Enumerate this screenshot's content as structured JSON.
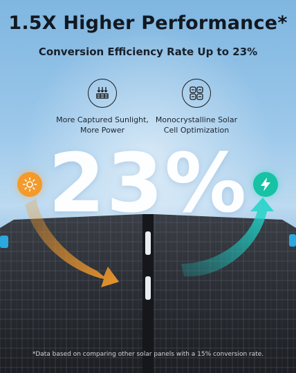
{
  "header": {
    "title": "1.5X Higher Performance*",
    "subtitle": "Conversion Efficiency Rate Up to 23%"
  },
  "features": [
    {
      "icon": "sunlight-rays-icon",
      "line1": "More Captured Sunlight,",
      "line2": "More Power"
    },
    {
      "icon": "monocrystalline-cells-icon",
      "line1": "Monocrystalline Solar",
      "line2": "Cell Optimization"
    }
  ],
  "highlight": {
    "value": "23%"
  },
  "badges": {
    "sun": "sun-icon",
    "power": "lightning-bolt-icon"
  },
  "footer": {
    "disclaimer": "*Data based on comparing other solar panels with a 15% conversion rate."
  },
  "colors": {
    "sun": "#f39a2b",
    "power": "#17c2a5",
    "panel": "#2a2d33",
    "accent": "#2aa8e0"
  }
}
